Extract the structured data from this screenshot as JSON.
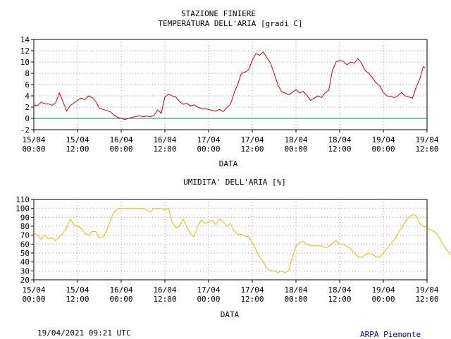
{
  "header": {
    "station": "STAZIONE FINIERE"
  },
  "chart_data": [
    {
      "type": "line",
      "title": "TEMPERATURA DELL'ARIA [gradi C]",
      "xlabel": "DATA",
      "ylabel": "",
      "x_ticks": [
        [
          "15/04",
          "00:00"
        ],
        [
          "15/04",
          "12:00"
        ],
        [
          "16/04",
          "00:00"
        ],
        [
          "16/04",
          "12:00"
        ],
        [
          "17/04",
          "00:00"
        ],
        [
          "17/04",
          "12:00"
        ],
        [
          "18/04",
          "00:00"
        ],
        [
          "18/04",
          "12:00"
        ],
        [
          "19/04",
          "00:00"
        ],
        [
          "19/04",
          "12:00"
        ]
      ],
      "xlim_hours": [
        0,
        108
      ],
      "ylim": [
        -2,
        14
      ],
      "y_ticks": [
        -2,
        0,
        2,
        4,
        6,
        8,
        10,
        12,
        14
      ],
      "grid": true,
      "zero_line": true,
      "series": [
        {
          "color": "#cc0000",
          "points": [
            [
              0,
              2.4
            ],
            [
              1,
              2.2
            ],
            [
              2,
              2.9
            ],
            [
              3,
              2.6
            ],
            [
              4,
              2.6
            ],
            [
              5,
              2.3
            ],
            [
              6,
              2.8
            ],
            [
              7,
              4.5
            ],
            [
              8,
              3.0
            ],
            [
              9,
              1.3
            ],
            [
              10,
              2.3
            ],
            [
              11,
              2.7
            ],
            [
              12,
              3.2
            ],
            [
              13,
              3.6
            ],
            [
              14,
              3.3
            ],
            [
              15,
              4.0
            ],
            [
              16,
              3.7
            ],
            [
              17,
              3.0
            ],
            [
              18,
              1.8
            ],
            [
              19,
              1.6
            ],
            [
              20,
              1.4
            ],
            [
              21,
              1.2
            ],
            [
              22,
              0.6
            ],
            [
              23,
              0.2
            ],
            [
              24,
              0.0
            ],
            [
              25,
              -0.2
            ],
            [
              26,
              0.0
            ],
            [
              27,
              0.2
            ],
            [
              28,
              0.3
            ],
            [
              29,
              0.5
            ],
            [
              30,
              0.3
            ],
            [
              31,
              0.4
            ],
            [
              32,
              0.3
            ],
            [
              33,
              0.5
            ],
            [
              34,
              1.5
            ],
            [
              35,
              0.9
            ],
            [
              36,
              3.8
            ],
            [
              37,
              4.3
            ],
            [
              38,
              4.0
            ],
            [
              39,
              3.8
            ],
            [
              40,
              3.0
            ],
            [
              41,
              2.5
            ],
            [
              42,
              2.7
            ],
            [
              43,
              2.2
            ],
            [
              44,
              2.4
            ],
            [
              45,
              2.0
            ],
            [
              46,
              1.8
            ],
            [
              47,
              1.7
            ],
            [
              48,
              1.6
            ],
            [
              49,
              1.4
            ],
            [
              50,
              1.3
            ],
            [
              51,
              1.6
            ],
            [
              52,
              1.2
            ],
            [
              53,
              1.9
            ],
            [
              54,
              2.5
            ],
            [
              55,
              4.5
            ],
            [
              56,
              6.0
            ],
            [
              57,
              8.0
            ],
            [
              58,
              8.2
            ],
            [
              59,
              8.6
            ],
            [
              60,
              10.3
            ],
            [
              61,
              11.5
            ],
            [
              62,
              11.2
            ],
            [
              63,
              11.8
            ],
            [
              64,
              10.8
            ],
            [
              65,
              9.8
            ],
            [
              66,
              8.0
            ],
            [
              67,
              6.0
            ],
            [
              68,
              4.8
            ],
            [
              69,
              4.5
            ],
            [
              70,
              4.2
            ],
            [
              71,
              4.6
            ],
            [
              72,
              5.1
            ],
            [
              73,
              4.5
            ],
            [
              74,
              4.8
            ],
            [
              75,
              4.1
            ],
            [
              76,
              3.2
            ],
            [
              77,
              3.6
            ],
            [
              78,
              4.0
            ],
            [
              79,
              3.7
            ],
            [
              80,
              4.5
            ],
            [
              81,
              5.0
            ],
            [
              82,
              8.5
            ],
            [
              83,
              10.0
            ],
            [
              84,
              10.3
            ],
            [
              85,
              10.1
            ],
            [
              86,
              9.5
            ],
            [
              87,
              10.0
            ],
            [
              88,
              9.8
            ],
            [
              89,
              10.6
            ],
            [
              90,
              9.8
            ],
            [
              91,
              8.5
            ],
            [
              92,
              8.0
            ],
            [
              93,
              7.2
            ],
            [
              94,
              6.3
            ],
            [
              95,
              5.8
            ],
            [
              96,
              4.6
            ],
            [
              97,
              4.0
            ],
            [
              98,
              3.9
            ],
            [
              99,
              3.7
            ],
            [
              100,
              4.0
            ],
            [
              101,
              4.6
            ],
            [
              102,
              4.0
            ],
            [
              103,
              3.8
            ],
            [
              104,
              3.6
            ],
            [
              105,
              5.5
            ],
            [
              106,
              7.0
            ],
            [
              107,
              9.2
            ],
            [
              107.5,
              8.9
            ]
          ]
        }
      ]
    },
    {
      "type": "line",
      "title": "UMIDITA' DELL'ARIA [%]",
      "xlabel": "DATA",
      "ylabel": "",
      "x_ticks": [
        [
          "15/04",
          "00:00"
        ],
        [
          "15/04",
          "12:00"
        ],
        [
          "16/04",
          "00:00"
        ],
        [
          "16/04",
          "12:00"
        ],
        [
          "17/04",
          "00:00"
        ],
        [
          "17/04",
          "12:00"
        ],
        [
          "18/04",
          "00:00"
        ],
        [
          "18/04",
          "12:00"
        ],
        [
          "19/04",
          "00:00"
        ],
        [
          "19/04",
          "12:00"
        ]
      ],
      "xlim_hours": [
        0,
        108
      ],
      "ylim": [
        20,
        110
      ],
      "y_ticks": [
        20,
        30,
        40,
        50,
        60,
        70,
        80,
        90,
        100,
        110
      ],
      "grid": true,
      "series": [
        {
          "color": "#e8b800",
          "points": [
            [
              0,
              73
            ],
            [
              1,
              70
            ],
            [
              2,
              65
            ],
            [
              3,
              70
            ],
            [
              4,
              66
            ],
            [
              5,
              67
            ],
            [
              6,
              64
            ],
            [
              7,
              68
            ],
            [
              8,
              72
            ],
            [
              9,
              78
            ],
            [
              10,
              88
            ],
            [
              11,
              82
            ],
            [
              12,
              80
            ],
            [
              13,
              78
            ],
            [
              14,
              72
            ],
            [
              15,
              70
            ],
            [
              16,
              74
            ],
            [
              17,
              74
            ],
            [
              18,
              67
            ],
            [
              19,
              68
            ],
            [
              20,
              75
            ],
            [
              21,
              86
            ],
            [
              22,
              96
            ],
            [
              23,
              99
            ],
            [
              24,
              100
            ],
            [
              25,
              100
            ],
            [
              26,
              100
            ],
            [
              27,
              100
            ],
            [
              28,
              100
            ],
            [
              29,
              100
            ],
            [
              30,
              100
            ],
            [
              31,
              98
            ],
            [
              32,
              96
            ],
            [
              33,
              100
            ],
            [
              34,
              100
            ],
            [
              35,
              100
            ],
            [
              36,
              98
            ],
            [
              37,
              100
            ],
            [
              38,
              85
            ],
            [
              39,
              78
            ],
            [
              40,
              80
            ],
            [
              41,
              88
            ],
            [
              42,
              80
            ],
            [
              43,
              72
            ],
            [
              44,
              68
            ],
            [
              45,
              80
            ],
            [
              46,
              87
            ],
            [
              47,
              83
            ],
            [
              48,
              85
            ],
            [
              49,
              87
            ],
            [
              50,
              82
            ],
            [
              51,
              88
            ],
            [
              52,
              85
            ],
            [
              53,
              80
            ],
            [
              54,
              83
            ],
            [
              55,
              75
            ],
            [
              56,
              71
            ],
            [
              57,
              71
            ],
            [
              58,
              69
            ],
            [
              59,
              68
            ],
            [
              60,
              62
            ],
            [
              61,
              54
            ],
            [
              62,
              46
            ],
            [
              63,
              40
            ],
            [
              64,
              33
            ],
            [
              65,
              30
            ],
            [
              66,
              30
            ],
            [
              67,
              28
            ],
            [
              68,
              30
            ],
            [
              69,
              28
            ],
            [
              70,
              30
            ],
            [
              71,
              45
            ],
            [
              72,
              57
            ],
            [
              73,
              62
            ],
            [
              74,
              63
            ],
            [
              75,
              60
            ],
            [
              76,
              58
            ],
            [
              77,
              58
            ],
            [
              78,
              58
            ],
            [
              79,
              58
            ],
            [
              80,
              56
            ],
            [
              81,
              57
            ],
            [
              82,
              61
            ],
            [
              83,
              64
            ],
            [
              84,
              60
            ],
            [
              85,
              60
            ],
            [
              86,
              57
            ],
            [
              87,
              55
            ],
            [
              88,
              50
            ],
            [
              89,
              46
            ],
            [
              90,
              45
            ],
            [
              91,
              48
            ],
            [
              92,
              50
            ],
            [
              93,
              48
            ],
            [
              94,
              46
            ],
            [
              95,
              45
            ],
            [
              96,
              50
            ],
            [
              97,
              55
            ],
            [
              98,
              60
            ],
            [
              99,
              65
            ],
            [
              100,
              72
            ],
            [
              101,
              78
            ],
            [
              102,
              85
            ],
            [
              103,
              90
            ],
            [
              104,
              93
            ],
            [
              105,
              92
            ],
            [
              106,
              83
            ],
            [
              107,
              80
            ],
            [
              108,
              78
            ],
            [
              109,
              76
            ],
            [
              110,
              74
            ],
            [
              111,
              70
            ],
            [
              112,
              62
            ],
            [
              113,
              56
            ],
            [
              114,
              50
            ],
            [
              115,
              47
            ]
          ]
        }
      ]
    }
  ],
  "footer": {
    "timestamp": "19/04/2021 09:21 UTC",
    "credit": "ARPA Piemonte"
  }
}
